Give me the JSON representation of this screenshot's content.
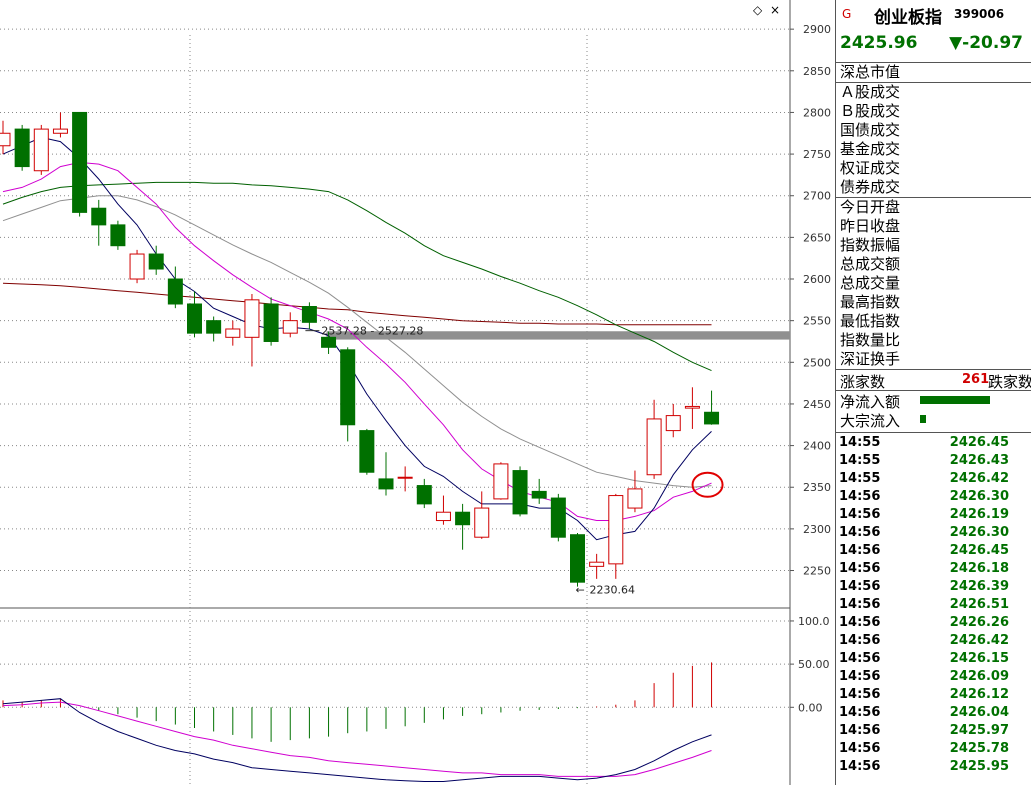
{
  "header": {
    "market_mark": "G",
    "index_name": "创业板指",
    "index_code": "399006",
    "price": "2425.96",
    "change": "▼-20.97"
  },
  "panel": {
    "section_a": [
      "深总市值"
    ],
    "section_b": [
      "Ａ股成交",
      "Ｂ股成交",
      "国债成交",
      "基金成交",
      "权证成交",
      "债券成交"
    ],
    "section_c": [
      "今日开盘",
      "昨日收盘",
      "指数振幅",
      "总成交额",
      "总成交量",
      "最高指数",
      "最低指数",
      "指数量比",
      "深证换手"
    ],
    "advance_label": "涨家数",
    "advance_count": "261",
    "decline_label": "跌家数",
    "net_inflow_label": "净流入额",
    "block_inflow_label": "大宗流入",
    "net_inflow_fraction": 0.9,
    "block_inflow_fraction": 0.08
  },
  "ticks": [
    {
      "time": "14:55",
      "price": "2426.45"
    },
    {
      "time": "14:55",
      "price": "2426.43"
    },
    {
      "time": "14:55",
      "price": "2426.42"
    },
    {
      "time": "14:56",
      "price": "2426.30"
    },
    {
      "time": "14:56",
      "price": "2426.19"
    },
    {
      "time": "14:56",
      "price": "2426.30"
    },
    {
      "time": "14:56",
      "price": "2426.45"
    },
    {
      "time": "14:56",
      "price": "2426.18"
    },
    {
      "time": "14:56",
      "price": "2426.39"
    },
    {
      "time": "14:56",
      "price": "2426.51"
    },
    {
      "time": "14:56",
      "price": "2426.26"
    },
    {
      "time": "14:56",
      "price": "2426.42"
    },
    {
      "time": "14:56",
      "price": "2426.15"
    },
    {
      "time": "14:56",
      "price": "2426.09"
    },
    {
      "time": "14:56",
      "price": "2426.12"
    },
    {
      "time": "14:56",
      "price": "2426.04"
    },
    {
      "time": "14:56",
      "price": "2425.97"
    },
    {
      "time": "14:56",
      "price": "2425.78"
    },
    {
      "time": "14:56",
      "price": "2425.95"
    }
  ],
  "chart_data": [
    {
      "type": "candlestick",
      "ylim": [
        2205,
        2935
      ],
      "yticks": [
        2250,
        2300,
        2350,
        2400,
        2450,
        2500,
        2550,
        2600,
        2650,
        2700,
        2750,
        2800,
        2850,
        2900
      ],
      "y_tick_labels": [
        "2250",
        "2300",
        "2350",
        "2400",
        "2450",
        "2500",
        "2550",
        "2600",
        "2650",
        "2700",
        "2750",
        "2800",
        "2850",
        "2900"
      ],
      "colors": {
        "up": "#d00000",
        "down": "#007000",
        "ma5": "#000060",
        "ma10": "#d000d0",
        "ma20": "#909090",
        "ma60": "#006000",
        "ma120": "#800000"
      },
      "candles": [
        {
          "o": 2760,
          "c": 2775,
          "h": 2790,
          "l": 2750
        },
        {
          "o": 2780,
          "c": 2735,
          "h": 2785,
          "l": 2730
        },
        {
          "o": 2730,
          "c": 2780,
          "h": 2785,
          "l": 2725
        },
        {
          "o": 2775,
          "c": 2780,
          "h": 2800,
          "l": 2770
        },
        {
          "o": 2800,
          "c": 2680,
          "h": 2800,
          "l": 2675
        },
        {
          "o": 2685,
          "c": 2665,
          "h": 2695,
          "l": 2640
        },
        {
          "o": 2665,
          "c": 2640,
          "h": 2670,
          "l": 2635
        },
        {
          "o": 2600,
          "c": 2630,
          "h": 2635,
          "l": 2595
        },
        {
          "o": 2630,
          "c": 2612,
          "h": 2640,
          "l": 2605
        },
        {
          "o": 2600,
          "c": 2570,
          "h": 2615,
          "l": 2565
        },
        {
          "o": 2570,
          "c": 2535,
          "h": 2585,
          "l": 2530
        },
        {
          "o": 2550,
          "c": 2535,
          "h": 2555,
          "l": 2525
        },
        {
          "o": 2530,
          "c": 2540,
          "h": 2550,
          "l": 2520
        },
        {
          "o": 2530,
          "c": 2575,
          "h": 2582,
          "l": 2495
        },
        {
          "o": 2570,
          "c": 2525,
          "h": 2578,
          "l": 2520
        },
        {
          "o": 2535,
          "c": 2550,
          "h": 2560,
          "l": 2530
        },
        {
          "o": 2567,
          "c": 2548,
          "h": 2572,
          "l": 2540
        },
        {
          "o": 2530,
          "c": 2518,
          "h": 2537,
          "l": 2510
        },
        {
          "o": 2515,
          "c": 2425,
          "h": 2518,
          "l": 2405
        },
        {
          "o": 2418,
          "c": 2368,
          "h": 2420,
          "l": 2365
        },
        {
          "o": 2360,
          "c": 2348,
          "h": 2392,
          "l": 2340
        },
        {
          "o": 2362,
          "c": 2362,
          "h": 2375,
          "l": 2345
        },
        {
          "o": 2352,
          "c": 2330,
          "h": 2360,
          "l": 2325
        },
        {
          "o": 2310,
          "c": 2320,
          "h": 2340,
          "l": 2305
        },
        {
          "o": 2320,
          "c": 2305,
          "h": 2330,
          "l": 2275
        },
        {
          "o": 2290,
          "c": 2325,
          "h": 2345,
          "l": 2288
        },
        {
          "o": 2336,
          "c": 2378,
          "h": 2380,
          "l": 2335
        },
        {
          "o": 2370,
          "c": 2318,
          "h": 2375,
          "l": 2315
        },
        {
          "o": 2345,
          "c": 2337,
          "h": 2360,
          "l": 2330
        },
        {
          "o": 2337,
          "c": 2290,
          "h": 2342,
          "l": 2285
        },
        {
          "o": 2293,
          "c": 2236,
          "h": 2295,
          "l": 2230.64
        },
        {
          "o": 2255,
          "c": 2260,
          "h": 2270,
          "l": 2240
        },
        {
          "o": 2258,
          "c": 2340,
          "h": 2342,
          "l": 2240
        },
        {
          "o": 2325,
          "c": 2348,
          "h": 2370,
          "l": 2320
        },
        {
          "o": 2365,
          "c": 2432,
          "h": 2455,
          "l": 2360
        },
        {
          "o": 2418,
          "c": 2436,
          "h": 2450,
          "l": 2410
        },
        {
          "o": 2445,
          "c": 2447,
          "h": 2470,
          "l": 2420
        },
        {
          "o": 2440,
          "c": 2426,
          "h": 2466,
          "l": 2425
        }
      ],
      "ma5": [
        2750,
        2760,
        2770,
        2765,
        2745,
        2720,
        2690,
        2665,
        2630,
        2600,
        2585,
        2565,
        2555,
        2545,
        2540,
        2542,
        2540,
        2532,
        2500,
        2462,
        2430,
        2400,
        2375,
        2363,
        2345,
        2330,
        2330,
        2330,
        2325,
        2325,
        2310,
        2287,
        2293,
        2297,
        2325,
        2365,
        2395,
        2417
      ],
      "ma10": [
        2705,
        2710,
        2720,
        2735,
        2740,
        2738,
        2730,
        2710,
        2690,
        2662,
        2640,
        2622,
        2605,
        2590,
        2576,
        2568,
        2560,
        2552,
        2540,
        2518,
        2498,
        2476,
        2450,
        2425,
        2395,
        2372,
        2358,
        2345,
        2338,
        2332,
        2315,
        2310,
        2310,
        2315,
        2322,
        2338,
        2345,
        2355
      ],
      "ma20": [
        2670,
        2678,
        2686,
        2694,
        2697,
        2700,
        2700,
        2695,
        2687,
        2677,
        2665,
        2653,
        2641,
        2630,
        2620,
        2608,
        2596,
        2583,
        2566,
        2548,
        2530,
        2512,
        2492,
        2472,
        2452,
        2435,
        2420,
        2408,
        2398,
        2388,
        2378,
        2368,
        2363,
        2358,
        2355,
        2352,
        2350,
        2352
      ],
      "ma60": [
        2690,
        2698,
        2705,
        2710,
        2712,
        2713,
        2714,
        2715,
        2716,
        2716,
        2716,
        2715,
        2715,
        2713,
        2712,
        2710,
        2708,
        2705,
        2695,
        2682,
        2668,
        2655,
        2640,
        2628,
        2620,
        2612,
        2603,
        2595,
        2586,
        2578,
        2568,
        2557,
        2545,
        2535,
        2525,
        2512,
        2500,
        2490
      ],
      "ma120": [
        2595,
        2594,
        2593,
        2592,
        2590,
        2588,
        2586,
        2584,
        2582,
        2580,
        2578,
        2576,
        2574,
        2572,
        2570,
        2568,
        2566,
        2564,
        2563,
        2560,
        2558,
        2556,
        2554,
        2552,
        2550,
        2549,
        2548,
        2547,
        2547,
        2546,
        2546,
        2546,
        2545,
        2545,
        2545,
        2545,
        2545,
        2545
      ],
      "annotations": [
        {
          "text": "2537.28 - 2527.28",
          "candle": 16,
          "value": 2532
        },
        {
          "text": "2230.64",
          "candle": 30,
          "value": 2230.64
        }
      ],
      "band": {
        "from": 2527.28,
        "to": 2537.28,
        "color": "#909090"
      },
      "circle_at": {
        "candle": 37,
        "value": 2353,
        "color": "#e00000"
      }
    },
    {
      "type": "macd",
      "ylim": [
        -90,
        115
      ],
      "yticks": [
        0,
        50,
        100
      ],
      "y_tick_labels": [
        "0.00",
        "50.00",
        "100.0"
      ],
      "colors": {
        "pos": "#d00000",
        "neg": "#007000",
        "dif": "#000060",
        "dea": "#d000d0"
      },
      "hist": [
        8,
        6,
        8,
        10,
        0,
        -4,
        -8,
        -12,
        -16,
        -20,
        -24,
        -28,
        -32,
        -36,
        -40,
        -38,
        -36,
        -34,
        -30,
        -28,
        -25,
        -22,
        -18,
        -14,
        -10,
        -8,
        -6,
        -4,
        -3,
        -2,
        -1,
        1,
        3,
        8,
        28,
        40,
        48,
        52
      ],
      "dif": [
        4,
        6,
        8,
        10,
        -6,
        -18,
        -28,
        -36,
        -44,
        -50,
        -54,
        -60,
        -64,
        -70,
        -72,
        -74,
        -76,
        -78,
        -80,
        -82,
        -84,
        -85,
        -86,
        -86,
        -84,
        -82,
        -80,
        -80,
        -80,
        -82,
        -84,
        -82,
        -78,
        -72,
        -62,
        -50,
        -40,
        -32
      ],
      "dea": [
        2,
        3,
        5,
        6,
        2,
        -4,
        -10,
        -16,
        -22,
        -28,
        -34,
        -38,
        -44,
        -48,
        -52,
        -56,
        -58,
        -62,
        -64,
        -66,
        -68,
        -70,
        -72,
        -74,
        -76,
        -76,
        -78,
        -78,
        -78,
        -80,
        -80,
        -80,
        -80,
        -78,
        -72,
        -65,
        -58,
        -50
      ]
    }
  ]
}
